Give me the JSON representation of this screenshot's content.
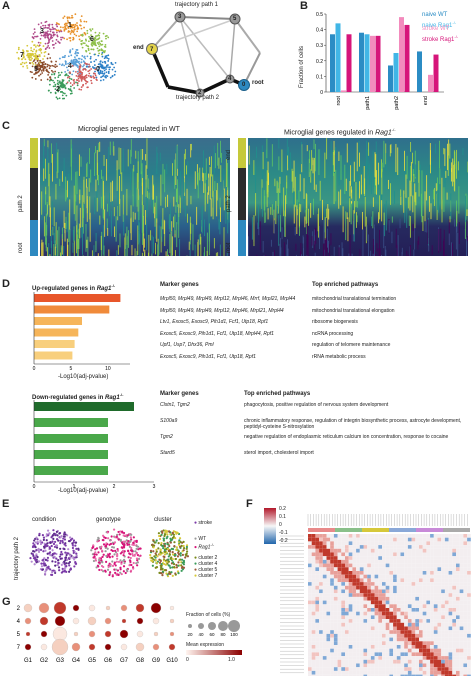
{
  "panels": {
    "A": "A",
    "B": "B",
    "C": "C",
    "D": "D",
    "E": "E",
    "F": "F",
    "G": "G"
  },
  "colors": {
    "naive_wt": "#2b8cc4",
    "naive_rag1": "#41b6e6",
    "stroke_wt": "#f38bbd",
    "stroke_rag1": "#d6157a",
    "dark_green": "#1f6b2b",
    "green": "#4aa84a",
    "orange1": "#e8562a",
    "orange2": "#f08a3a",
    "orange3": "#f6b55a",
    "orange4": "#f8cf7d"
  },
  "A": {
    "clusters": [
      "0",
      "1",
      "2",
      "3",
      "4",
      "5",
      "6",
      "7"
    ],
    "traj_nodes": [
      "0",
      "2",
      "3",
      "4",
      "5",
      "7"
    ],
    "path1_label": "trajectory path 1",
    "path2_label": "trajectory path 2",
    "end_label": "end",
    "root_label": "root"
  },
  "chart_data": [
    {
      "type": "bar",
      "panel": "B",
      "categories": [
        "root",
        "path1",
        "path2",
        "end"
      ],
      "ylabel": "Fraction of cells",
      "ylim": [
        0,
        0.5
      ],
      "yticks": [
        "0",
        "0.1",
        "0.2",
        "0.3",
        "0.4",
        "0.5"
      ],
      "series": [
        {
          "name": "naive WT",
          "values": [
            0.37,
            0.38,
            0.17,
            0.26
          ]
        },
        {
          "name": "naive Rag1",
          "values": [
            0.44,
            0.37,
            0.25,
            0.0
          ]
        },
        {
          "name": "stroke WT",
          "values": [
            0.01,
            0.36,
            0.48,
            0.11
          ]
        },
        {
          "name": "stroke Rag1",
          "values": [
            0.37,
            0.36,
            0.43,
            0.24
          ]
        }
      ]
    },
    {
      "type": "bar",
      "panel": "D-up",
      "xlabel": "-Log10(adj-pvalue)",
      "xticks": [
        "0",
        "5",
        "10"
      ],
      "xlim": [
        0,
        13
      ],
      "values": [
        11.7,
        10.2,
        6.5,
        6.0,
        5.5,
        5.2
      ]
    },
    {
      "type": "bar",
      "panel": "D-down",
      "xlabel": "-Log10(adj-pvalue)",
      "xticks": [
        "0",
        "1",
        "2",
        "3"
      ],
      "xlim": [
        0,
        3
      ],
      "values": [
        2.5,
        1.85,
        1.85,
        1.85,
        1.85
      ]
    }
  ],
  "C": {
    "title_wt": "Microglial genes regulated in WT",
    "title_rag_prefix": "Microglial genes regulated in ",
    "title_rag_gene": "Rag1",
    "axis": [
      "end",
      "path 2",
      "root"
    ]
  },
  "D_up": {
    "title_prefix": "Up-regulated genes in ",
    "title_gene": "Rag1",
    "col_marker": "Marker genes",
    "col_path": "Top enriched pathways",
    "rows": [
      {
        "genes": "Mrpl50, Mrpl49, Mrpl49, Mrpl12, Mrpl46, Mrrf, Mrpl21, Mrpl44",
        "pathway": "mitochondrial translational termination"
      },
      {
        "genes": "Mrpl50, Mrpl49, Mrpl49, Mrpl12, Mrpl46, Mrpl21, Mrpl44",
        "pathway": "mitochondrial translational elongation"
      },
      {
        "genes": "Ltv1, Exosc5, Exosc9, Pih1d1, Fcf1, Utp18, Rpf1",
        "pathway": "ribosome biogenesis"
      },
      {
        "genes": "Exosc5, Exosc9, Pih1d1, Fcf1, Utp18, Mrpl44, Rpf1",
        "pathway": "ncRNA processing"
      },
      {
        "genes": "Upf1, Usp7, Dhx36, Pml",
        "pathway": "regulation of telomere maintenance"
      },
      {
        "genes": "Exosc5, Exosc9, Pih1d1, Fcf1, Utp18, Rpf1",
        "pathway": "rRNA metabolic process"
      }
    ]
  },
  "D_down": {
    "title_prefix": "Down-regulated genes in ",
    "title_gene": "Rag1",
    "col_marker": "Marker genes",
    "col_path": "Top enriched pathways",
    "rows": [
      {
        "genes": "Clstn1, Tgm2",
        "pathway": "phagocytosis, positive regulation of nervous system development"
      },
      {
        "genes": "S100a9",
        "pathway": "chronic inflammatory response, regulation of integrin biosynthetic process, astrocyte development, peptidyl-cysteine S-nitrosylation"
      },
      {
        "genes": "Tgm2",
        "pathway": "negative regulation of endoplasmic reticulum calcium ion concentration, response to cocaine"
      },
      {
        "genes": "Stard5",
        "pathway": "sterol import, cholesterol import"
      }
    ]
  },
  "E": {
    "labels": [
      "condition",
      "genotype",
      "cluster"
    ],
    "ylabel": "trajectory path 2",
    "legend_stroke": "stroke",
    "legend_wt": "WT",
    "legend_rag": "Rag1",
    "clusters": [
      "cluster 2",
      "cluster 4",
      "cluster 5",
      "cluster 7"
    ]
  },
  "G": {
    "rows": [
      "2",
      "4",
      "5",
      "7"
    ],
    "cols": [
      "G1",
      "G2",
      "G3",
      "G4",
      "G5",
      "G6",
      "G7",
      "G8",
      "G9",
      "G10"
    ],
    "size_title": "Fraction of cells (%)",
    "size_ticks": [
      "20",
      "40",
      "60",
      "80",
      "100"
    ],
    "color_title": "Mean expression",
    "color_ticks": [
      "0",
      "",
      "",
      "",
      "",
      "1.0"
    ]
  },
  "F": {
    "scale": [
      "0.2",
      "0.1",
      "0",
      "-0.1",
      "-0.2"
    ]
  }
}
